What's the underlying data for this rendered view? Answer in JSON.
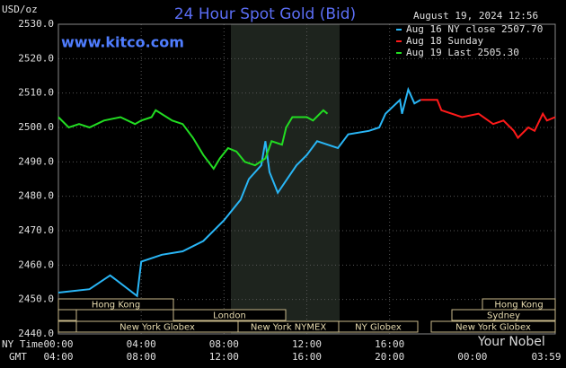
{
  "chart_data": {
    "type": "line",
    "title": "24 Hour Spot Gold (Bid)",
    "site": "www.kitco.com",
    "timestamp": "August 19, 2024 12:56",
    "y_unit": "USD/oz",
    "x_row_labels": [
      "NY Time",
      "GMT"
    ],
    "watermark": "Your Nobel",
    "xlim": [
      0,
      24
    ],
    "ylim": [
      2440,
      2530
    ],
    "grid": true,
    "legend": "top-right",
    "yticks": [
      {
        "value": 2440,
        "label": "2440.0"
      },
      {
        "value": 2450,
        "label": "2450.0"
      },
      {
        "value": 2460,
        "label": "2460.0"
      },
      {
        "value": 2470,
        "label": "2470.0"
      },
      {
        "value": 2480,
        "label": "2480.0"
      },
      {
        "value": 2490,
        "label": "2490.0"
      },
      {
        "value": 2500,
        "label": "2500.0"
      },
      {
        "value": 2510,
        "label": "2510.0"
      },
      {
        "value": 2520,
        "label": "2520.0"
      },
      {
        "value": 2530,
        "label": "2530.0"
      }
    ],
    "xticks": [
      {
        "value": 0,
        "label": "00:00"
      },
      {
        "value": 4,
        "label": "04:00"
      },
      {
        "value": 8,
        "label": "08:00"
      },
      {
        "value": 12,
        "label": "12:00"
      },
      {
        "value": 16,
        "label": "16:00"
      }
    ],
    "xticks_gmt": [
      {
        "value": 0,
        "label": "04:00"
      },
      {
        "value": 4,
        "label": "08:00"
      },
      {
        "value": 8,
        "label": "12:00"
      },
      {
        "value": 12,
        "label": "16:00"
      },
      {
        "value": 16,
        "label": "20:00"
      },
      {
        "value": 20,
        "label": "00:00"
      },
      {
        "value": 24,
        "label": "03:59"
      }
    ],
    "sessions": [
      "Hong Kong",
      "London",
      "New York Globex",
      "New York NYMEX",
      "NY Globex",
      "Hong Kong",
      "Sydney",
      "New York Globex"
    ],
    "series": [
      {
        "name": "Aug 16 NY close 2507.70",
        "color": "#29b6f6",
        "x": [
          0,
          1.5,
          2.5,
          3.8,
          4.0,
          5,
          6,
          7,
          8,
          8.8,
          9.2,
          9.8,
          10,
          10.2,
          10.6,
          11.5,
          12,
          12.5,
          13.5,
          14,
          15,
          15.5,
          15.8,
          16.5,
          16.6,
          16.9,
          17.2,
          17.5
        ],
        "values": [
          2452,
          2453,
          2457,
          2451,
          2461,
          2463,
          2464,
          2467,
          2473,
          2479,
          2485,
          2489,
          2496,
          2487,
          2481,
          2489,
          2492,
          2496,
          2494,
          2498,
          2499,
          2500,
          2504,
          2508,
          2504,
          2511,
          2507,
          2508
        ]
      },
      {
        "name": "Aug 18 Sunday",
        "color": "#ff1a1a",
        "x": [
          17.5,
          18.3,
          18.5,
          19.5,
          20.3,
          21,
          21.5,
          22,
          22.2,
          22.7,
          23,
          23.4,
          23.6,
          24
        ],
        "values": [
          2508,
          2508,
          2505,
          2503,
          2504,
          2501,
          2502,
          2499,
          2497,
          2500,
          2499,
          2504,
          2502,
          2503
        ]
      },
      {
        "name": "Aug 19 Last 2505.30",
        "color": "#22dd22",
        "x": [
          0,
          0.5,
          1,
          1.5,
          2.2,
          3,
          3.7,
          4,
          4.5,
          4.7,
          5.5,
          6,
          6.5,
          7,
          7.5,
          7.8,
          8.2,
          8.6,
          9,
          9.5,
          10,
          10.3,
          10.8,
          11,
          11.3,
          12,
          12.3,
          12.8,
          13
        ],
        "values": [
          2503,
          2500,
          2501,
          2500,
          2502,
          2503,
          2501,
          2502,
          2503,
          2505,
          2502,
          2501,
          2497,
          2492,
          2488,
          2491,
          2494,
          2493,
          2490,
          2489,
          2491,
          2496,
          2495,
          2500,
          2503,
          2503,
          2502,
          2505,
          2504
        ]
      }
    ]
  }
}
